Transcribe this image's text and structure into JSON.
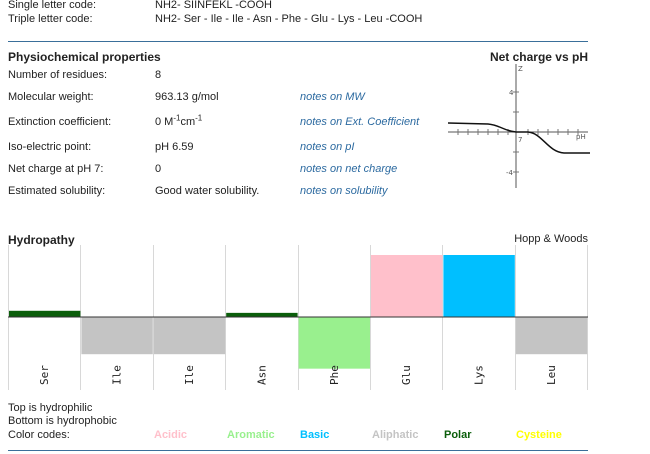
{
  "header": {
    "single_label": "Single letter code:",
    "single_value": "NH2- SIINFEKL -COOH",
    "triple_label": "Triple letter code:",
    "triple_value": "NH2- Ser - Ile - Ile - Asn - Phe - Glu - Lys - Leu -COOH"
  },
  "physchem": {
    "title": "Physiochemical properties",
    "rows": [
      {
        "label": "Number of residues:",
        "value": "8",
        "note": ""
      },
      {
        "label": "Molecular weight:",
        "value": "963.13 g/mol",
        "note": "notes on MW"
      },
      {
        "label": "Extinction coefficient:",
        "value": "0 M",
        "note": "notes on Ext. Coefficient"
      },
      {
        "label": "Iso-electric point:",
        "value": "pH 6.59",
        "note": "notes on pI"
      },
      {
        "label": "Net charge at pH 7:",
        "value": "0",
        "note": "notes on net charge"
      },
      {
        "label": "Estimated solubility:",
        "value": "Good water solubility.",
        "note": "notes on solubility"
      }
    ],
    "ext_unit_sup1": "-1",
    "ext_unit_mid": "cm",
    "ext_unit_sup2": "-1"
  },
  "netcharge": {
    "title": "Net charge vs pH",
    "z_label": "Z",
    "ph_label": "pH",
    "tick_pos": "4",
    "tick_zero": "7",
    "tick_neg": "-4"
  },
  "hydropathy": {
    "title": "Hydropathy",
    "scale": "Hopp & Woods"
  },
  "chart_data": {
    "type": "bar",
    "categories": [
      "Ser",
      "Ile",
      "Ile",
      "Asn",
      "Phe",
      "Glu",
      "Lys",
      "Leu"
    ],
    "values": [
      0.3,
      -1.8,
      -1.8,
      0.2,
      -2.5,
      3.0,
      3.0,
      -1.8
    ],
    "colors": [
      "#0b5e0b",
      "#c4c4c4",
      "#c4c4c4",
      "#0b5e0b",
      "#99f08e",
      "#ffc0cb",
      "#00bfff",
      "#c4c4c4"
    ],
    "ylim": [
      -2.5,
      3.0
    ]
  },
  "legend": {
    "top": "Top is hydrophilic",
    "bottom": "Bottom is hydrophobic",
    "color_codes": "Color codes:",
    "items": [
      {
        "label": "Acidic",
        "color": "#ffc0cb"
      },
      {
        "label": "Aromatic",
        "color": "#99f08e"
      },
      {
        "label": "Basic",
        "color": "#00bfff"
      },
      {
        "label": "Aliphatic",
        "color": "#c4c4c4"
      },
      {
        "label": "Polar",
        "color": "#0b5e0b"
      },
      {
        "label": "Cysteine",
        "color": "#ffff00"
      }
    ]
  }
}
